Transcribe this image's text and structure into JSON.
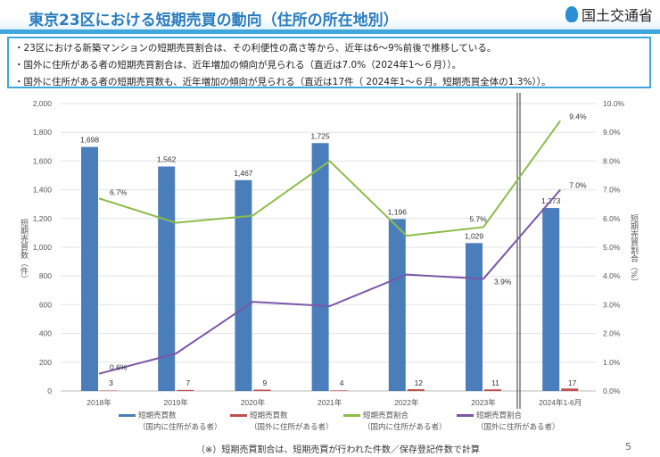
{
  "header": {
    "title": "東京23区における短期売買の動向（住所の所在地別）",
    "logo_text": "国土交通省"
  },
  "bullets": [
    "・23区における新築マンションの短期売買割合は、その利便性の高さ等から、近年は6～9%前後で推移している。",
    "・国外に住所がある者の短期売買割合は、近年増加の傾向が見られる（直近は7.0%（2024年1～６月））。",
    "・国外に住所がある者の短期売買数も、近年増加の傾向が見られる（直近は17件（ 2024年1～６月。短期売買全体の1.3%））。"
  ],
  "footnote": "（※）短期売買割合は、短期売買が行われた件数／保存登記件数で計算",
  "page_number": "5",
  "chart_data": {
    "type": "bar+line",
    "categories": [
      "2018年",
      "2019年",
      "2020年",
      "2021年",
      "2022年",
      "2023年",
      "2024年1-6月"
    ],
    "ylabel": "短期売買数（件）",
    "y2label": "短期売買割合（%）",
    "ylim": [
      0,
      2000
    ],
    "yticks": [
      "0",
      "200",
      "400",
      "600",
      "800",
      "1,000",
      "1,200",
      "1,400",
      "1,600",
      "1,800",
      "2,000"
    ],
    "y2lim": [
      0,
      10
    ],
    "y2ticks": [
      "0.0%",
      "1.0%",
      "2.0%",
      "3.0%",
      "4.0%",
      "5.0%",
      "6.0%",
      "7.0%",
      "8.0%",
      "9.0%",
      "10.0%"
    ],
    "grid": true,
    "legend": "bottom",
    "series": [
      {
        "name": "短期売買数",
        "sub": "（国内に住所がある者）",
        "kind": "bar",
        "color": "#4a7ebb",
        "values": [
          1698,
          1562,
          1467,
          1725,
          1196,
          1029,
          1273
        ],
        "labels": [
          "1,698",
          "1,562",
          "1,467",
          "1,725",
          "1,196",
          "1,029",
          "1,273"
        ]
      },
      {
        "name": "短期売買数",
        "sub": "（国外に住所がある者）",
        "kind": "bar",
        "color": "#c0504d",
        "values": [
          3,
          7,
          9,
          4,
          12,
          11,
          17
        ],
        "labels": [
          "3",
          "7",
          "9",
          "4",
          "12",
          "11",
          "17"
        ]
      },
      {
        "name": "短期売買割合",
        "sub": "（国内に住所がある者）",
        "kind": "line",
        "axis": "right",
        "color": "#8cbd4a",
        "values": [
          6.7,
          5.85,
          6.1,
          8.0,
          5.4,
          5.7,
          9.4
        ],
        "labels": [
          "6.7%",
          "",
          "",
          "",
          "",
          "5.7%",
          "9.4%"
        ]
      },
      {
        "name": "短期売買割合",
        "sub": "（国外に住所がある者）",
        "kind": "line",
        "axis": "right",
        "color": "#7a57a8",
        "values": [
          0.6,
          1.3,
          3.1,
          2.95,
          4.05,
          3.9,
          7.0
        ],
        "labels": [
          "0.6%",
          "",
          "",
          "",
          "",
          "3.9%",
          "7.0%"
        ]
      }
    ]
  }
}
